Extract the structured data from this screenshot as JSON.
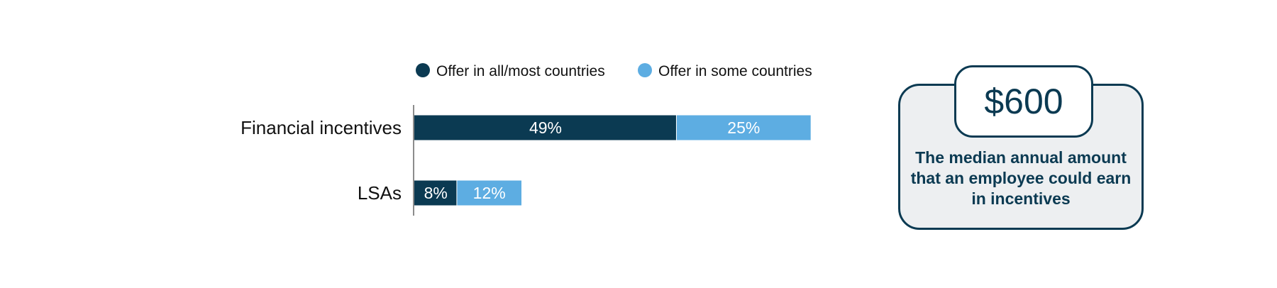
{
  "chart_data": {
    "type": "bar",
    "orientation": "horizontal",
    "stacked": true,
    "categories": [
      "Financial incentives",
      "LSAs"
    ],
    "series": [
      {
        "name": "Offer in all/most countries",
        "values": [
          49,
          8
        ],
        "color": "#0b3a52"
      },
      {
        "name": "Offer in some countries",
        "values": [
          25,
          12
        ],
        "color": "#5dade2"
      }
    ],
    "value_suffix": "%",
    "xlim": [
      0,
      100
    ],
    "legend_position": "top",
    "grid": false
  },
  "callout": {
    "value": "$600",
    "caption": "The median annual amount that an employee could earn in incentives"
  }
}
